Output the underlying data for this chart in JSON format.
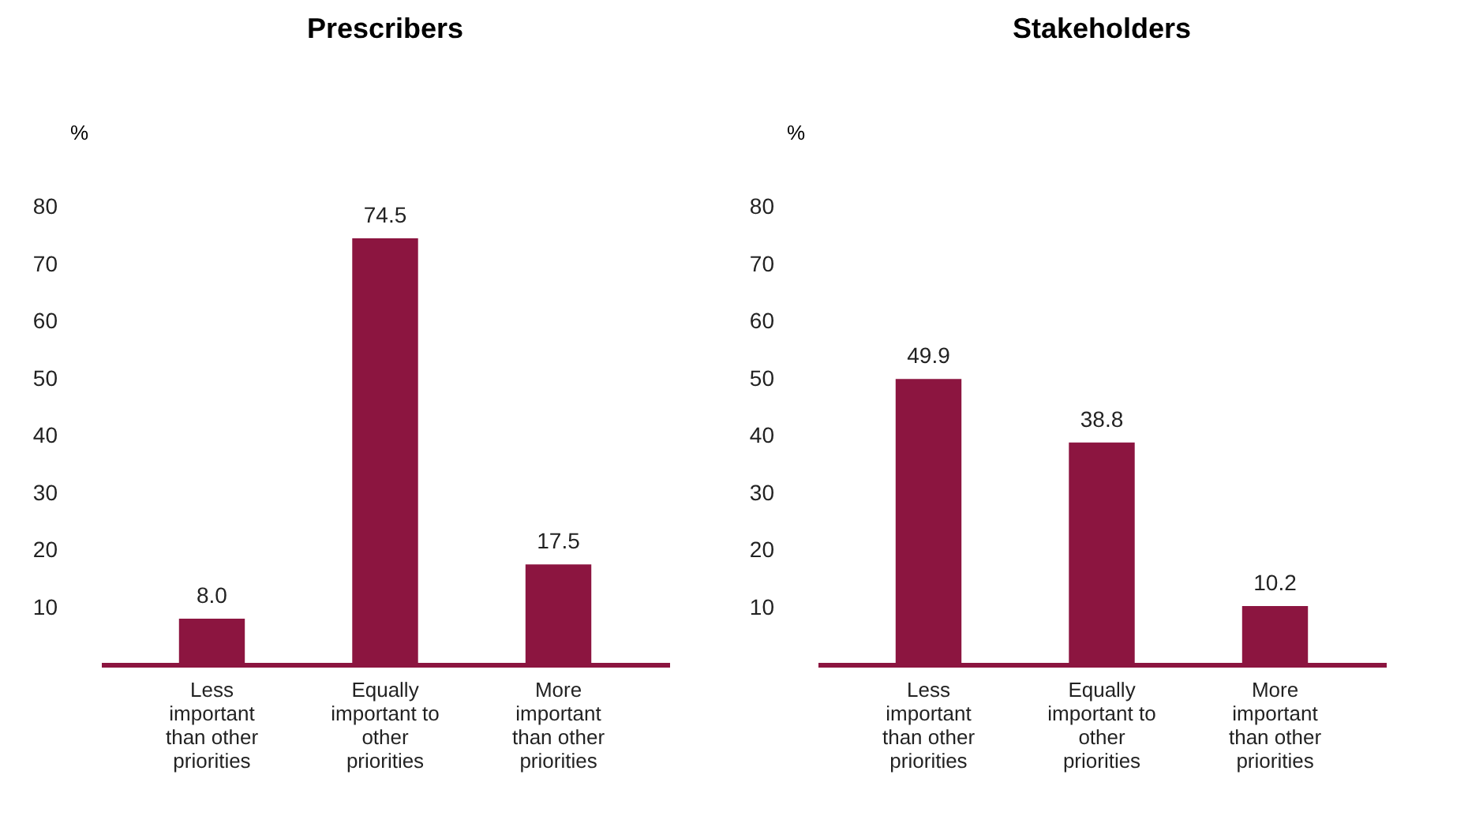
{
  "chart_data": [
    {
      "type": "bar",
      "title": "Prescribers",
      "ylabel": "%",
      "categories": [
        "Less important than other priorities",
        "Equally important to other priorities",
        "More important than other priorities"
      ],
      "values": [
        8.0,
        74.5,
        17.5
      ],
      "value_labels": [
        "8.0",
        "74.5",
        "17.5"
      ],
      "color": "#8c1540",
      "ylim": [
        0,
        80
      ],
      "yticks": [
        10,
        20,
        30,
        40,
        50,
        60,
        70,
        80
      ],
      "grid": false
    },
    {
      "type": "bar",
      "title": "Stakeholders",
      "ylabel": "%",
      "categories": [
        "Less important than other priorities",
        "Equally important to other priorities",
        "More important than other priorities"
      ],
      "values": [
        49.9,
        38.8,
        10.2
      ],
      "value_labels": [
        "49.9",
        "38.8",
        "10.2"
      ],
      "color": "#8c1540",
      "ylim": [
        0,
        80
      ],
      "yticks": [
        10,
        20,
        30,
        40,
        50,
        60,
        70,
        80
      ],
      "grid": false
    }
  ]
}
